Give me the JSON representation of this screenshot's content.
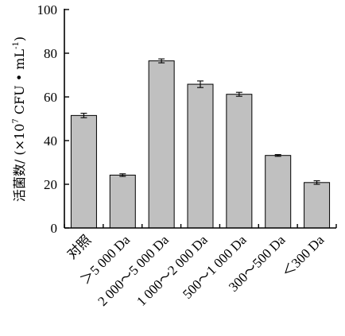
{
  "chart_data": {
    "type": "bar",
    "title": "",
    "xlabel": "",
    "ylabel": {
      "prefix": "活菌数/ (×10",
      "sup1": "7",
      "middle": " CFU • mL",
      "sup2": "-1",
      "suffix": ")"
    },
    "ylim": [
      0,
      100
    ],
    "yticks": [
      0,
      20,
      40,
      60,
      80,
      100
    ],
    "grid": false,
    "categories": [
      "对照",
      "＞5 000 Da",
      "2 000～5 000 Da",
      "1 000～2 000 Da",
      "500～1 000 Da",
      "300～500 Da",
      "＜300 Da"
    ],
    "values": [
      51.5,
      24.2,
      76.5,
      65.8,
      61.2,
      33.2,
      20.8
    ],
    "errors": [
      1.0,
      0.6,
      0.9,
      1.5,
      0.9,
      0.4,
      0.8
    ],
    "bar_color": "#c0c0c0"
  }
}
